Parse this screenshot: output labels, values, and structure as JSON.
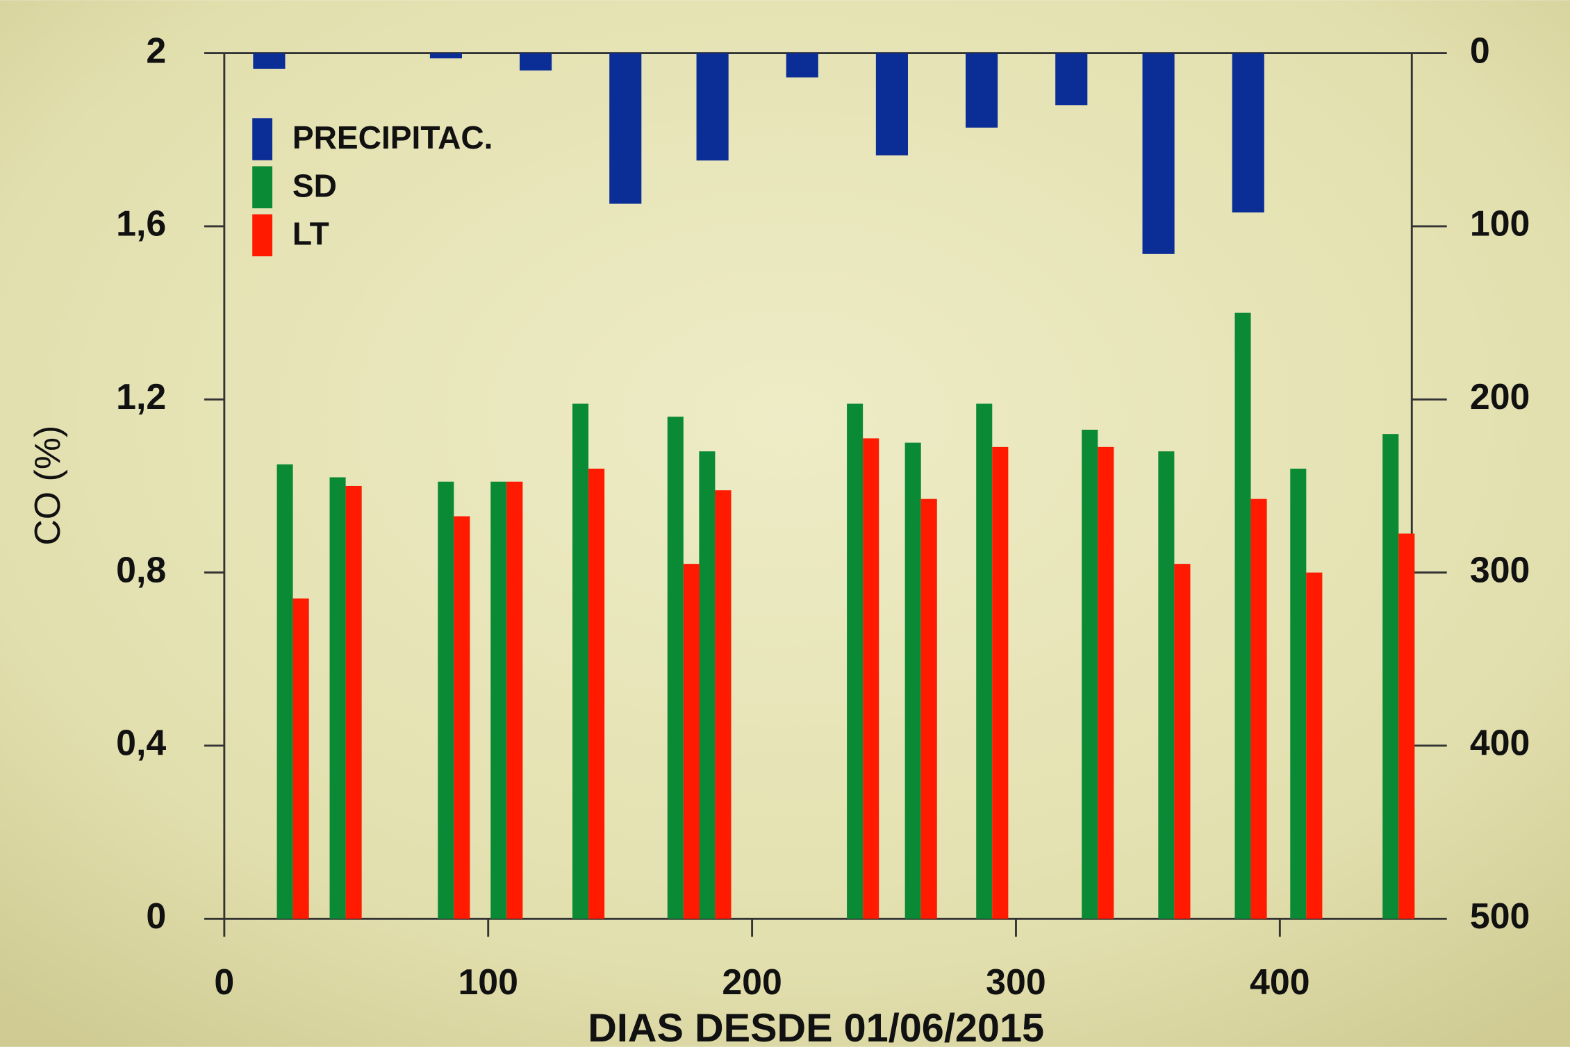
{
  "chart_data": {
    "type": "bar",
    "x_label": "DIAS DESDE 01/06/2015",
    "y_label": "CO (%)",
    "xlim": [
      0,
      450
    ],
    "xticks": [
      0,
      100,
      200,
      300,
      400
    ],
    "ylim": [
      0,
      2
    ],
    "yticks": [
      0,
      {
        "value": 0.4,
        "label": "0,4"
      },
      {
        "value": 0.8,
        "label": "0,8"
      },
      {
        "value": 1.2,
        "label": "1,2"
      },
      {
        "value": 1.6,
        "label": "1,6"
      },
      2
    ],
    "y2lim": [
      0,
      500
    ],
    "y2ticks": [
      0,
      100,
      200,
      300,
      400,
      500
    ],
    "y2_inverted": true,
    "legend": "top-left",
    "series": [
      {
        "name": "PRECIPITAC.",
        "color": "#0a2d96",
        "axis": "y2",
        "x": [
          17,
          84,
          118,
          152,
          185,
          219,
          253,
          287,
          321,
          354,
          388
        ],
        "values": [
          9,
          3,
          10,
          87,
          62,
          14,
          59,
          43,
          30,
          116,
          92
        ]
      },
      {
        "name": "SD",
        "color": "#0b8a35",
        "x": [
          26,
          46,
          87,
          107,
          138,
          174,
          186,
          242,
          264,
          291,
          331,
          360,
          389,
          410,
          445
        ],
        "values": [
          1.05,
          1.02,
          1.01,
          1.01,
          1.19,
          1.16,
          1.08,
          1.19,
          1.1,
          1.19,
          1.13,
          1.08,
          1.4,
          1.04,
          1.12
        ]
      },
      {
        "name": "LT",
        "color": "#ff1a00",
        "x": [
          26,
          46,
          87,
          107,
          138,
          174,
          186,
          242,
          264,
          291,
          331,
          360,
          389,
          410,
          445
        ],
        "values": [
          0.74,
          1.0,
          0.93,
          1.01,
          1.04,
          0.82,
          0.99,
          1.11,
          0.97,
          1.09,
          1.09,
          0.82,
          0.97,
          0.8,
          0.89
        ]
      }
    ]
  }
}
